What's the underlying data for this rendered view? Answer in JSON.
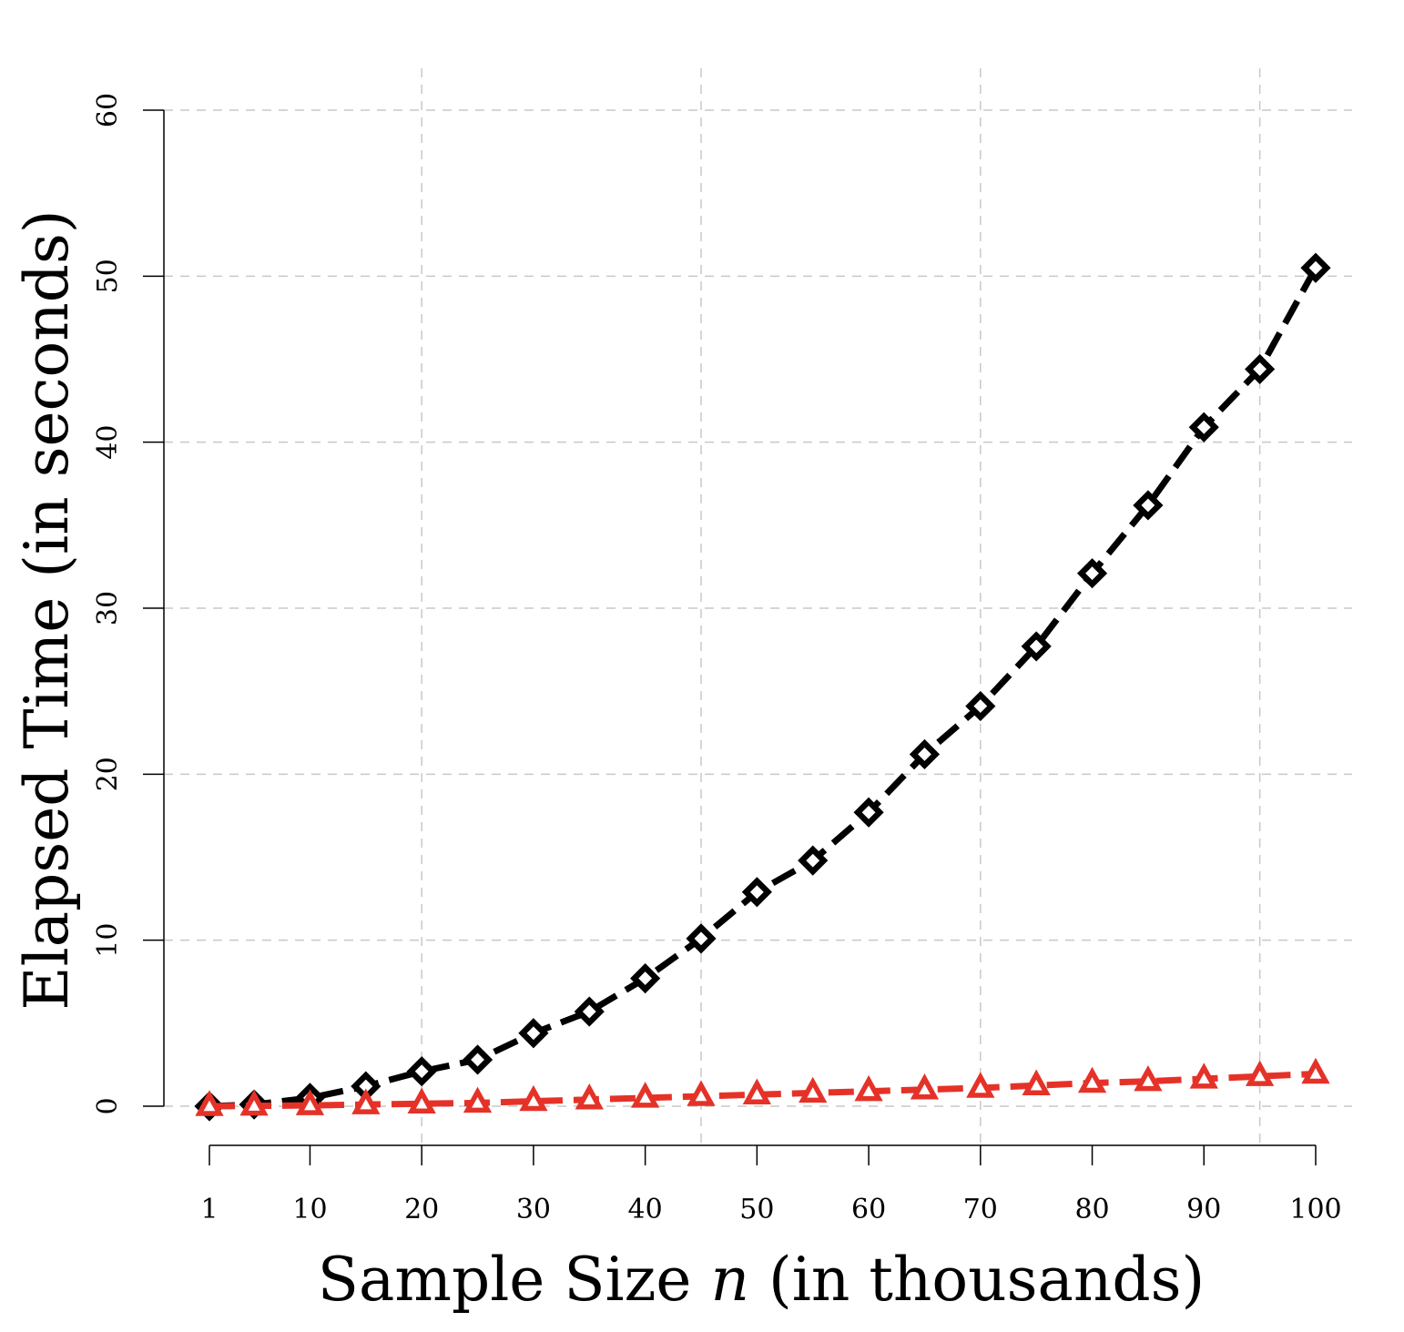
{
  "chart_data": {
    "type": "line",
    "title": "",
    "xlabel": "Sample Size n (in thousands)",
    "xlabel_parts": {
      "prefix": "Sample Size ",
      "variable": "n",
      "suffix": " (in thousands)"
    },
    "ylabel": "Elapsed Time (in seconds)",
    "x": [
      1,
      5,
      10,
      15,
      20,
      25,
      30,
      35,
      40,
      45,
      50,
      55,
      60,
      65,
      70,
      75,
      80,
      85,
      90,
      95,
      100
    ],
    "x_tick_labels": [
      "1",
      "10",
      "20",
      "30",
      "40",
      "50",
      "60",
      "70",
      "80",
      "90",
      "100"
    ],
    "x_tick_values": [
      1,
      10,
      20,
      30,
      40,
      50,
      60,
      70,
      80,
      90,
      100
    ],
    "x_tick_extra": [
      5,
      15,
      25,
      35,
      45,
      55,
      65,
      75,
      85,
      95
    ],
    "x_grid": [
      20,
      45,
      70,
      95
    ],
    "y_tick_labels": [
      "0",
      "10",
      "20",
      "30",
      "40",
      "50",
      "60"
    ],
    "y_tick_values": [
      0,
      10,
      20,
      30,
      40,
      50,
      60
    ],
    "xlim": [
      1,
      100
    ],
    "ylim": [
      0,
      60
    ],
    "grid": true,
    "series": [
      {
        "color": "#000000",
        "marker": "diamond",
        "line_style": "dashed",
        "values": [
          0.0,
          0.1,
          0.5,
          1.2,
          2.1,
          2.8,
          4.4,
          5.7,
          7.7,
          10.1,
          12.9,
          14.8,
          17.7,
          21.2,
          24.1,
          27.7,
          32.1,
          36.2,
          40.9,
          44.4,
          50.5
        ]
      },
      {
        "color": "#e53228",
        "marker": "triangle",
        "line_style": "dashed",
        "values": [
          0.0,
          0.02,
          0.05,
          0.1,
          0.15,
          0.2,
          0.3,
          0.4,
          0.5,
          0.6,
          0.7,
          0.8,
          0.9,
          1.0,
          1.1,
          1.25,
          1.4,
          1.5,
          1.65,
          1.8,
          1.95
        ]
      }
    ]
  }
}
